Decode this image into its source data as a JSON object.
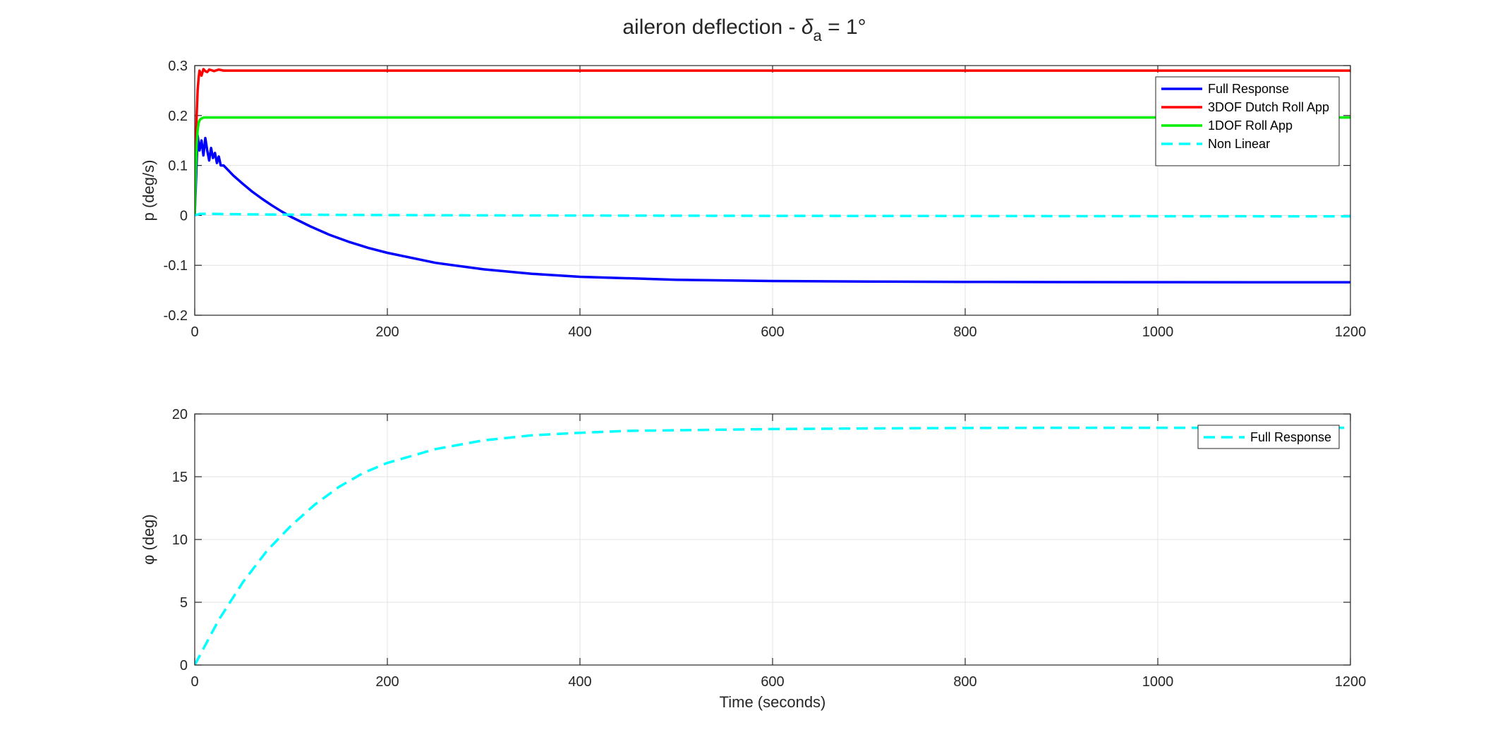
{
  "title": {
    "prefix": "aileron deflection - ",
    "symbol": "δ",
    "subscript": "a",
    "suffix": " = 1°"
  },
  "chart_data": [
    {
      "type": "line",
      "ylabel": "p (deg/s)",
      "xlabel": "",
      "xlim": [
        0,
        1200
      ],
      "ylim": [
        -0.2,
        0.3
      ],
      "xticks": [
        "0",
        "200",
        "400",
        "600",
        "800",
        "1000",
        "1200"
      ],
      "yticks": [
        "-0.2",
        "-0.1",
        "0",
        "0.1",
        "0.2",
        "0.3"
      ],
      "grid": true,
      "legend_position": "top-right",
      "series": [
        {
          "name": "Full Response",
          "color": "#0000ff",
          "style": "solid",
          "x": [
            0,
            3,
            5,
            7,
            9,
            11,
            13,
            15,
            17,
            19,
            21,
            23,
            25,
            27,
            30,
            35,
            40,
            50,
            60,
            70,
            80,
            90,
            100,
            120,
            140,
            160,
            180,
            200,
            250,
            300,
            350,
            400,
            500,
            600,
            700,
            800,
            900,
            1000,
            1100,
            1200
          ],
          "y": [
            0,
            0.16,
            0.13,
            0.15,
            0.12,
            0.155,
            0.13,
            0.11,
            0.135,
            0.115,
            0.125,
            0.105,
            0.118,
            0.1,
            0.1,
            0.09,
            0.08,
            0.063,
            0.047,
            0.033,
            0.02,
            0.008,
            -0.003,
            -0.022,
            -0.039,
            -0.053,
            -0.065,
            -0.075,
            -0.095,
            -0.108,
            -0.117,
            -0.123,
            -0.129,
            -0.1315,
            -0.1325,
            -0.1332,
            -0.1336,
            -0.1338,
            -0.134,
            -0.134
          ]
        },
        {
          "name": "3DOF Dutch Roll App",
          "color": "#ff0000",
          "style": "solid",
          "x": [
            0,
            1,
            2,
            3,
            4,
            5,
            6,
            7,
            9,
            11,
            13,
            15,
            17,
            20,
            25,
            30,
            40,
            1200
          ],
          "y": [
            0,
            0.12,
            0.2,
            0.25,
            0.275,
            0.29,
            0.285,
            0.28,
            0.293,
            0.289,
            0.287,
            0.292,
            0.291,
            0.289,
            0.292,
            0.29,
            0.29,
            0.29
          ]
        },
        {
          "name": "1DOF Roll App",
          "color": "#00ee00",
          "style": "solid",
          "x": [
            0,
            1,
            2,
            3,
            4,
            5,
            6,
            8,
            10,
            15,
            1200
          ],
          "y": [
            0,
            0.09,
            0.14,
            0.17,
            0.185,
            0.19,
            0.193,
            0.195,
            0.196,
            0.196,
            0.196
          ]
        },
        {
          "name": "Non Linear",
          "color": "#00ffff",
          "style": "dashed",
          "x": [
            0,
            5,
            20,
            60,
            150,
            300,
            600,
            1200
          ],
          "y": [
            0,
            0.003,
            0.003,
            0.002,
            0.001,
            0.0,
            -0.001,
            -0.002
          ]
        }
      ]
    },
    {
      "type": "line",
      "ylabel": "φ (deg)",
      "xlabel": "Time (seconds)",
      "xlim": [
        0,
        1200
      ],
      "ylim": [
        0,
        20
      ],
      "xticks": [
        "0",
        "200",
        "400",
        "600",
        "800",
        "1000",
        "1200"
      ],
      "yticks": [
        "0",
        "5",
        "10",
        "15",
        "20"
      ],
      "grid": true,
      "legend_position": "top-right",
      "series": [
        {
          "name": "Full Response",
          "color": "#00ffff",
          "style": "dashed",
          "x": [
            0,
            25,
            50,
            75,
            100,
            125,
            150,
            175,
            200,
            250,
            300,
            350,
            400,
            450,
            500,
            600,
            700,
            800,
            900,
            1000,
            1100,
            1200
          ],
          "y": [
            0,
            3.6,
            6.6,
            9.1,
            11.1,
            12.8,
            14.2,
            15.3,
            16.1,
            17.2,
            17.9,
            18.3,
            18.5,
            18.65,
            18.7,
            18.8,
            18.85,
            18.88,
            18.9,
            18.9,
            18.9,
            18.9
          ]
        }
      ]
    }
  ]
}
